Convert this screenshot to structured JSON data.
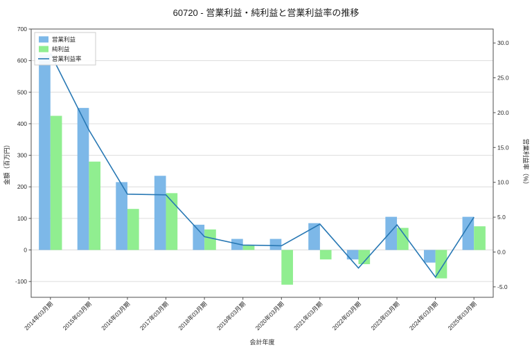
{
  "title": "60720 - 営業利益・純利益と営業利益率の推移",
  "chart_data": {
    "type": "bar",
    "title": "60720 - 営業利益・純利益と営業利益率の推移",
    "categories": [
      "2014年03月期",
      "2015年03月期",
      "2016年03月期",
      "2017年03月期",
      "2018年03月期",
      "2019年03月期",
      "2020年03月期",
      "2021年03月期",
      "2022年03月期",
      "2023年03月期",
      "2024年03月期",
      "2025年03月期"
    ],
    "series": [
      {
        "name": "営業利益",
        "type": "bar",
        "color": "#7db8e8",
        "axis": "left",
        "values": [
          620,
          450,
          215,
          235,
          80,
          35,
          35,
          85,
          -30,
          105,
          -40,
          105
        ]
      },
      {
        "name": "純利益",
        "type": "bar",
        "color": "#90ee90",
        "axis": "left",
        "values": [
          425,
          280,
          130,
          180,
          65,
          15,
          -110,
          -30,
          -45,
          70,
          -90,
          75
        ]
      },
      {
        "name": "営業利益率",
        "type": "line",
        "color": "#2878b4",
        "axis": "right",
        "values": [
          28.5,
          17.5,
          8.3,
          8.2,
          2.2,
          1.0,
          0.9,
          4.0,
          -2.3,
          3.9,
          -3.6,
          5.0
        ]
      }
    ],
    "xlabel": "会計年度",
    "ylabel_left": "金額（百万円）",
    "ylabel_right": "営業利益率（%）",
    "ylim_left": [
      -150,
      700
    ],
    "ylim_right": [
      -6.5,
      32
    ],
    "yticks_left": [
      -100,
      0,
      100,
      200,
      300,
      400,
      500,
      600,
      700
    ],
    "yticks_right": [
      -5,
      0,
      5,
      10,
      15,
      20,
      25,
      30
    ],
    "grid": true,
    "legend_position": "upper left",
    "grid_color": "#dcdcdc",
    "frame_color": "#4d4d4d",
    "legend_border_color": "#cccccc"
  }
}
